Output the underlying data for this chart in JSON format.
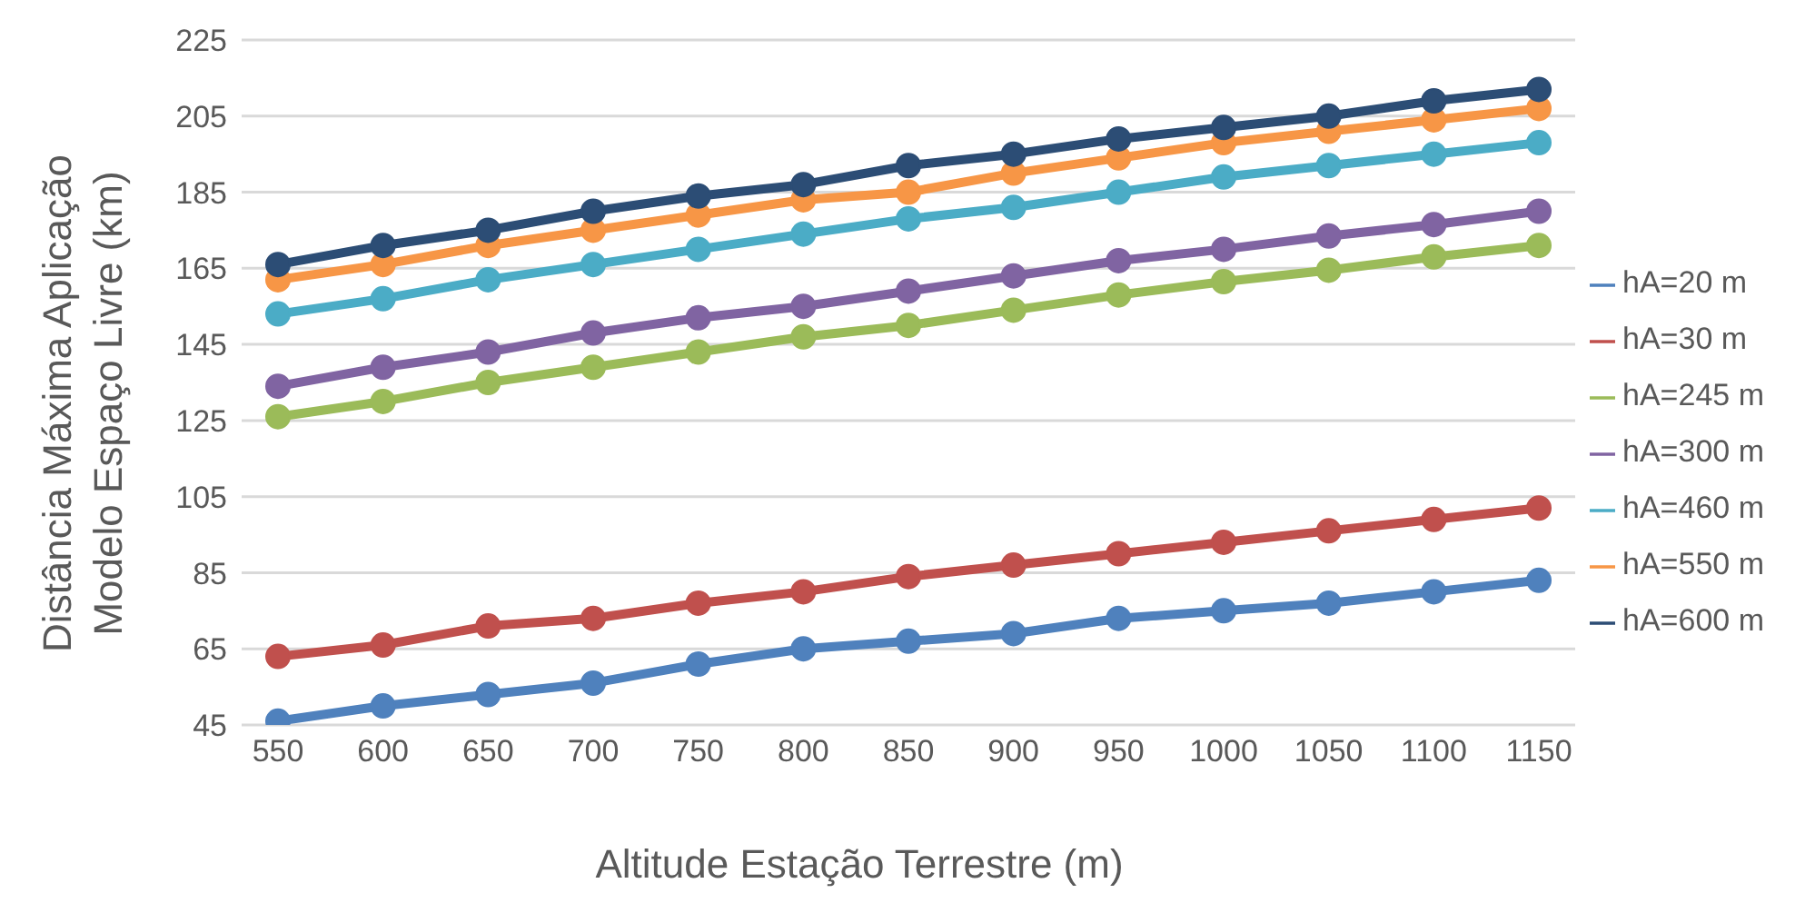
{
  "chart_data": {
    "type": "line",
    "xlabel": "Altitude Estação Terrestre (m)",
    "ylabel": "Distância Máxima Aplicação Modelo Espaço Livre (km)",
    "categories": [
      "550",
      "600",
      "650",
      "700",
      "750",
      "800",
      "850",
      "900",
      "950",
      "1000",
      "1050",
      "1100",
      "1150"
    ],
    "series": [
      {
        "name": "hA=20 m",
        "color": "#4f81bd",
        "values": [
          46,
          50,
          53,
          56,
          61,
          65,
          67,
          69,
          73,
          75,
          77,
          80,
          83
        ]
      },
      {
        "name": "hA=30 m",
        "color": "#c0504d",
        "values": [
          63,
          66,
          71,
          73,
          77,
          80,
          84,
          87,
          90,
          93,
          96,
          99,
          102
        ]
      },
      {
        "name": "hA=245 m",
        "color": "#9bbb59",
        "values": [
          126,
          130,
          135,
          139,
          143,
          147,
          150,
          154,
          158,
          161.5,
          164.5,
          168,
          171
        ]
      },
      {
        "name": "hA=300 m",
        "color": "#8064a2",
        "values": [
          134,
          139,
          143,
          148,
          152,
          155,
          159,
          163,
          167,
          170,
          173.5,
          176.5,
          180
        ]
      },
      {
        "name": "hA=460 m",
        "color": "#4bacc6",
        "values": [
          153,
          157,
          162,
          166,
          170,
          174,
          178,
          181,
          185,
          189,
          192,
          195,
          198
        ]
      },
      {
        "name": "hA=550 m",
        "color": "#f79646",
        "values": [
          162,
          166,
          171,
          175,
          179,
          183,
          185,
          190,
          194,
          198,
          201,
          204,
          207
        ]
      },
      {
        "name": "hA=600 m",
        "color": "#2c4d75",
        "values": [
          166,
          171,
          175,
          180,
          184,
          187,
          192,
          195,
          199,
          202,
          205,
          209,
          212
        ]
      }
    ],
    "ylim": [
      45,
      225
    ],
    "yticks": [
      45,
      65,
      85,
      105,
      125,
      145,
      165,
      185,
      205,
      225
    ],
    "grid": "y",
    "legend": "right",
    "marker": "circle",
    "line_style": "solid"
  }
}
